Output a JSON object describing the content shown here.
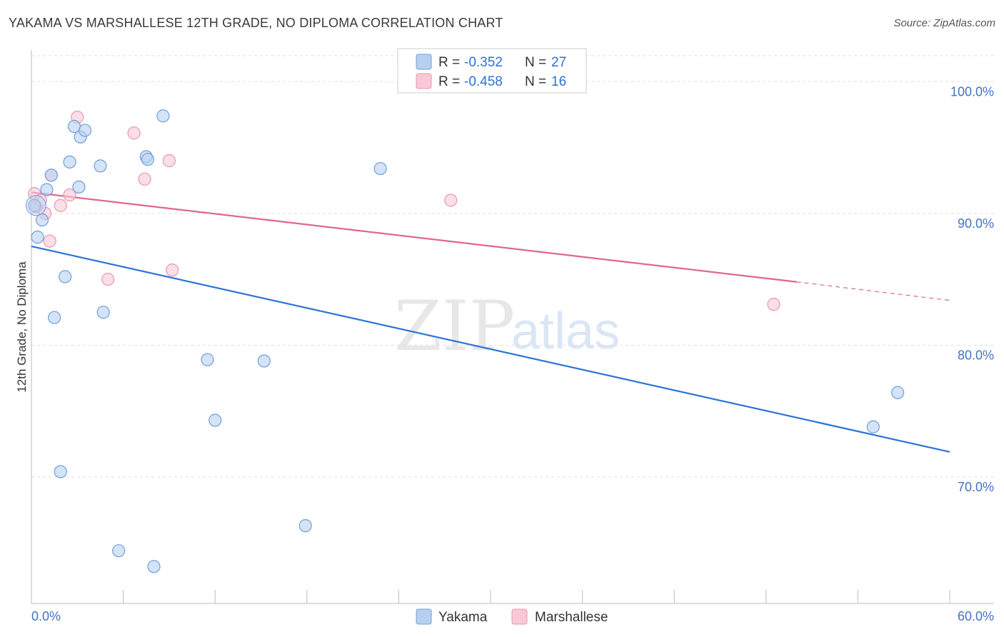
{
  "title": "YAKAMA VS MARSHALLESE 12TH GRADE, NO DIPLOMA CORRELATION CHART",
  "source": "Source: ZipAtlas.com",
  "watermark": {
    "zip": "ZIP",
    "atlas": "atlas"
  },
  "colors": {
    "yakama_fill": "#b8d0f0",
    "yakama_stroke": "#6f9fdc",
    "yakama_line": "#2b74d6",
    "marshallese_fill": "#f8c8d6",
    "marshallese_stroke": "#e897b0",
    "marshallese_line": "#e0668f",
    "grid": "#dddddd",
    "axis": "#bbbbbb",
    "label_blue": "#4472c4"
  },
  "legend": {
    "rows": [
      {
        "series": "Yakama",
        "r_label": "R =",
        "r_value": "-0.352",
        "n_label": "N =",
        "n_value": "27"
      },
      {
        "series": "Marshallese",
        "r_label": "R =",
        "r_value": "-0.458",
        "n_label": "N =",
        "n_value": "16"
      }
    ]
  },
  "chart_data": {
    "type": "scatter",
    "title": "YAKAMA VS MARSHALLESE 12TH GRADE, NO DIPLOMA CORRELATION CHART",
    "xlabel": "",
    "ylabel": "12th Grade, No Diploma",
    "xlim": [
      0,
      60
    ],
    "ylim": [
      60.4,
      102.4
    ],
    "x_tick_labels": [
      "0.0%",
      "60.0%"
    ],
    "y_ticks": [
      70,
      80,
      90,
      100
    ],
    "y_tick_labels": [
      "70.0%",
      "80.0%",
      "90.0%",
      "100.0%"
    ],
    "grid": true,
    "legend_position": "top-center",
    "series": [
      {
        "name": "Yakama",
        "points": [
          [
            0.2,
            90.6
          ],
          [
            0.4,
            88.2
          ],
          [
            0.7,
            89.5
          ],
          [
            1.0,
            91.8
          ],
          [
            1.3,
            92.9
          ],
          [
            1.5,
            82.1
          ],
          [
            1.9,
            70.4
          ],
          [
            2.2,
            85.2
          ],
          [
            2.5,
            93.9
          ],
          [
            2.8,
            96.6
          ],
          [
            3.1,
            92.0
          ],
          [
            3.2,
            95.8
          ],
          [
            3.5,
            96.3
          ],
          [
            4.5,
            93.6
          ],
          [
            4.7,
            82.5
          ],
          [
            5.7,
            64.4
          ],
          [
            7.5,
            94.3
          ],
          [
            7.6,
            94.1
          ],
          [
            8.0,
            63.2
          ],
          [
            8.6,
            97.4
          ],
          [
            11.5,
            78.9
          ],
          [
            12.0,
            74.3
          ],
          [
            15.2,
            78.8
          ],
          [
            17.9,
            66.3
          ],
          [
            22.8,
            93.4
          ],
          [
            55.0,
            73.8
          ],
          [
            56.6,
            76.4
          ]
        ],
        "trend": {
          "x": [
            0,
            60
          ],
          "y": [
            87.5,
            71.9
          ]
        }
      },
      {
        "name": "Marshallese",
        "points": [
          [
            0.2,
            91.5
          ],
          [
            0.3,
            90.5
          ],
          [
            0.6,
            91.0
          ],
          [
            0.9,
            90.0
          ],
          [
            1.2,
            87.9
          ],
          [
            1.3,
            92.9
          ],
          [
            1.9,
            90.6
          ],
          [
            2.5,
            91.4
          ],
          [
            3.0,
            97.3
          ],
          [
            5.0,
            85.0
          ],
          [
            6.7,
            96.1
          ],
          [
            7.4,
            92.6
          ],
          [
            9.0,
            94.0
          ],
          [
            9.2,
            85.7
          ],
          [
            27.4,
            91.0
          ],
          [
            48.5,
            83.1
          ]
        ],
        "trend": {
          "x": [
            0,
            50.0
          ],
          "y": [
            91.6,
            84.8
          ]
        },
        "trend_dashed": {
          "x": [
            50.0,
            60
          ],
          "y": [
            84.8,
            83.4
          ]
        }
      }
    ]
  },
  "bottom_legend": [
    {
      "label": "Yakama"
    },
    {
      "label": "Marshallese"
    }
  ]
}
